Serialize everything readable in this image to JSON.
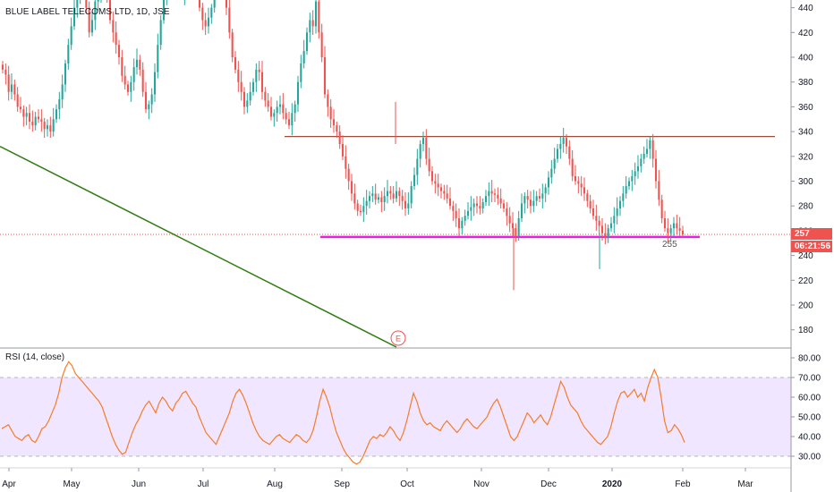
{
  "chart_title": "BLUE LABEL TELECOMS LTD, 1D, JSE",
  "current_price_label": "257",
  "countdown_label": "06:21:56",
  "support_label": "255",
  "event_marker": "E",
  "colors": {
    "up": "#26a69a",
    "down": "#ef5350",
    "support_line": "#e91ee9",
    "resistance_line": "#a04a3a",
    "trend_line": "#2e7d12",
    "rsi_line": "#f57c2a",
    "rsi_band": "#f1e6ff",
    "price_tag": "#ef5350"
  },
  "chart_data": [
    {
      "type": "candlestick",
      "title": "BLUE LABEL TELECOMS LTD, 1D, JSE",
      "x_ticks": [
        "Apr",
        "May",
        "Jun",
        "Jul",
        "Aug",
        "Sep",
        "Oct",
        "Nov",
        "Dec",
        "2020",
        "Feb",
        "Mar"
      ],
      "y_ticks": [
        180,
        200,
        220,
        240,
        260,
        280,
        300,
        320,
        340,
        360,
        380,
        400,
        420,
        440
      ],
      "ylim": [
        165,
        444
      ],
      "closes": [
        390,
        386,
        372,
        378,
        370,
        360,
        358,
        352,
        355,
        348,
        345,
        352,
        350,
        348,
        342,
        345,
        340,
        350,
        358,
        366,
        378,
        395,
        410,
        425,
        440,
        450,
        470,
        465,
        440,
        420,
        430,
        445,
        450,
        455,
        460,
        448,
        430,
        420,
        410,
        400,
        385,
        378,
        372,
        380,
        392,
        398,
        390,
        372,
        358,
        362,
        370,
        388,
        410,
        430,
        450,
        470,
        480,
        490,
        470,
        460,
        450,
        455,
        470,
        480,
        470,
        455,
        440,
        430,
        425,
        432,
        440,
        450,
        470,
        480,
        470,
        440,
        420,
        400,
        390,
        380,
        372,
        360,
        365,
        372,
        380,
        390,
        388,
        372,
        365,
        360,
        352,
        355,
        360,
        362,
        355,
        350,
        345,
        355,
        362,
        380,
        395,
        405,
        420,
        430,
        425,
        445,
        420,
        400,
        370,
        360,
        350,
        345,
        340,
        330,
        320,
        310,
        300,
        290,
        282,
        276,
        275,
        280,
        284,
        288,
        290,
        285,
        287,
        283,
        288,
        292,
        290,
        286,
        292,
        288,
        284,
        278,
        282,
        296,
        305,
        318,
        330,
        335,
        318,
        308,
        300,
        298,
        295,
        292,
        290,
        286,
        280,
        276,
        270,
        262,
        268,
        272,
        276,
        279,
        282,
        280,
        278,
        283,
        288,
        292,
        290,
        289,
        286,
        282,
        278,
        272,
        266,
        262,
        256,
        270,
        282,
        288,
        285,
        280,
        284,
        288,
        286,
        290,
        295,
        303,
        310,
        318,
        326,
        330,
        335,
        328,
        318,
        304,
        300,
        298,
        295,
        290,
        284,
        278,
        272,
        268,
        264,
        258,
        254,
        262,
        266,
        272,
        278,
        284,
        290,
        296,
        300,
        304,
        308,
        312,
        318,
        322,
        326,
        333,
        318,
        300,
        285,
        270,
        262,
        258,
        262,
        266,
        262,
        260,
        257
      ],
      "price_levels": {
        "resistance": 336,
        "support": 255,
        "current": 257
      },
      "trend_line": [
        {
          "x": "Apr",
          "y": 328
        },
        {
          "x": "Sep",
          "y": 165
        }
      ]
    },
    {
      "type": "line",
      "title": "RSI (14, close)",
      "y_ticks": [
        "30.00",
        "40.00",
        "50.00",
        "60.00",
        "70.00",
        "80.00"
      ],
      "ylim": [
        25,
        83
      ],
      "band": [
        30,
        70
      ],
      "values": [
        44,
        45,
        46,
        43,
        40,
        39,
        38,
        40,
        41,
        38,
        37,
        40,
        44,
        45,
        48,
        52,
        56,
        62,
        70,
        75,
        78,
        76,
        72,
        70,
        68,
        66,
        64,
        62,
        60,
        58,
        55,
        50,
        45,
        40,
        36,
        33,
        31,
        32,
        37,
        42,
        46,
        49,
        53,
        56,
        58,
        55,
        52,
        57,
        60,
        58,
        55,
        53,
        57,
        59,
        62,
        63,
        60,
        57,
        55,
        50,
        46,
        42,
        40,
        38,
        36,
        40,
        44,
        48,
        52,
        58,
        62,
        64,
        61,
        57,
        52,
        47,
        43,
        40,
        38,
        37,
        36,
        38,
        40,
        41,
        39,
        38,
        37,
        39,
        41,
        40,
        38,
        37,
        39,
        43,
        50,
        58,
        64,
        60,
        55,
        48,
        42,
        38,
        34,
        31,
        29,
        27,
        26,
        27,
        30,
        34,
        38,
        40,
        39,
        41,
        40,
        42,
        45,
        43,
        40,
        38,
        42,
        48,
        55,
        62,
        58,
        52,
        48,
        46,
        47,
        45,
        44,
        43,
        46,
        48,
        46,
        44,
        42,
        44,
        47,
        49,
        47,
        45,
        44,
        46,
        48,
        50,
        54,
        57,
        59,
        55,
        50,
        45,
        40,
        38,
        40,
        44,
        48,
        52,
        50,
        47,
        49,
        51,
        48,
        46,
        50,
        56,
        62,
        68,
        65,
        60,
        56,
        54,
        52,
        48,
        45,
        43,
        41,
        39,
        37,
        36,
        38,
        40,
        45,
        52,
        58,
        62,
        63,
        60,
        62,
        64,
        60,
        62,
        58,
        65,
        70,
        74,
        70,
        60,
        48,
        42,
        43,
        46,
        44,
        41,
        37
      ]
    }
  ]
}
